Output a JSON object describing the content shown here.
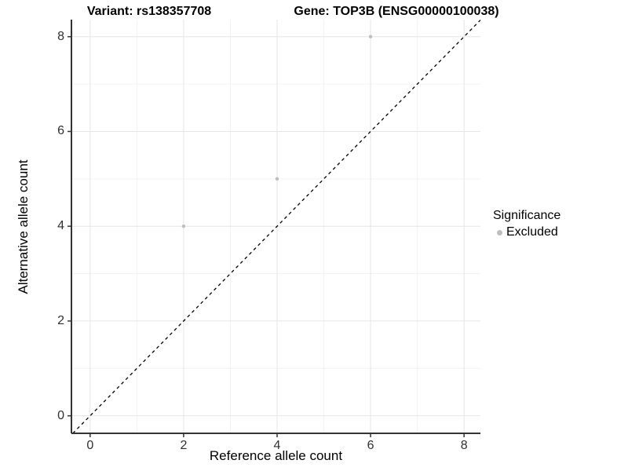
{
  "chart_data": {
    "type": "scatter",
    "title_left": "Variant: rs138357708",
    "title_right": "Gene: TOP3B (ENSG00000100038)",
    "xlabel": "Reference allele count",
    "ylabel": "Alternative allele count",
    "xlim": [
      -0.4,
      8.35
    ],
    "ylim": [
      -0.37,
      8.36
    ],
    "x_ticks": [
      0,
      2,
      4,
      6,
      8
    ],
    "y_ticks": [
      0,
      2,
      4,
      6,
      8
    ],
    "x_minor_ticks": [
      1,
      3,
      5,
      7
    ],
    "y_minor_ticks": [
      1,
      3,
      5,
      7
    ],
    "grid": "major and minor gridlines on white background",
    "series": [
      {
        "name": "Excluded",
        "color": "#bebebe",
        "points": [
          [
            2,
            4
          ],
          [
            4,
            5
          ],
          [
            6,
            8
          ]
        ]
      }
    ],
    "reference_line": {
      "kind": "identity y=x",
      "style": "dashed",
      "color": "#000000"
    },
    "legend": {
      "title": "Significance",
      "position": "right",
      "entries": [
        {
          "label": "Excluded",
          "color": "#bebebe"
        }
      ]
    }
  },
  "colors": {
    "axis_line": "#333333",
    "tick_mark": "#333333",
    "tick_label": "#303030",
    "grid_major": "#e6e6e6",
    "grid_minor": "#f2f2f2",
    "point": "#bebebe",
    "background": "#ffffff"
  }
}
